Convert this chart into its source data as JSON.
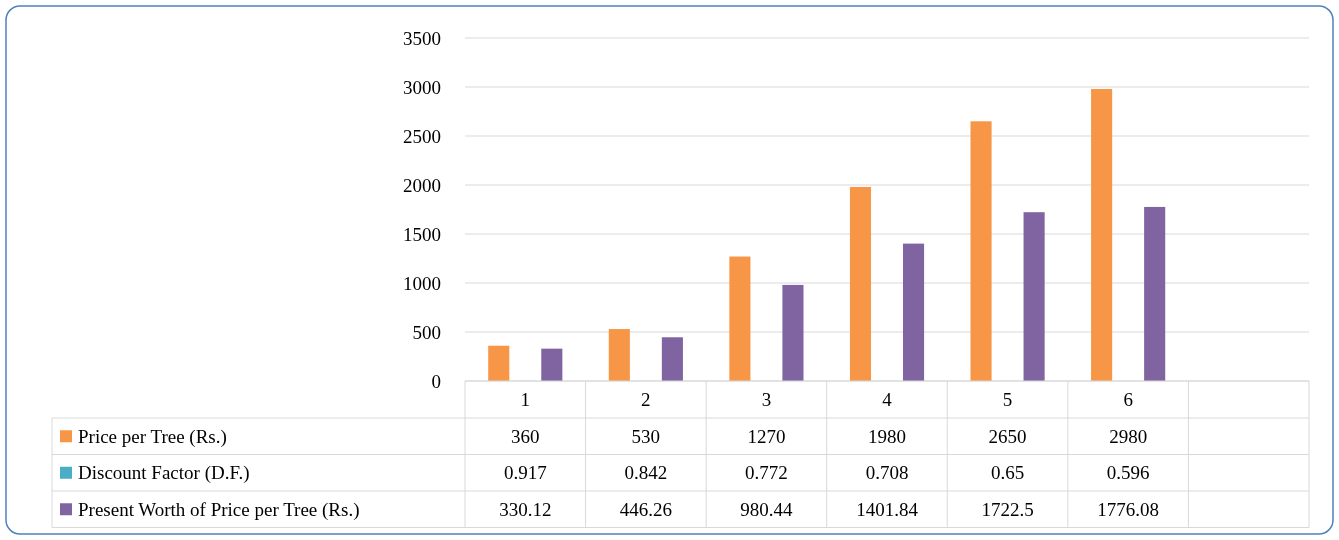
{
  "chart_data": {
    "type": "bar",
    "categories": [
      "1",
      "2",
      "3",
      "4",
      "5",
      "6",
      null
    ],
    "series": [
      {
        "name": "Price per Tree (Rs.)",
        "color": "#f79646",
        "values": [
          360,
          530,
          1270,
          1980,
          2650,
          2980,
          null
        ]
      },
      {
        "name": "Discount Factor (D.F.)",
        "color": "#4bacc6",
        "values": [
          0.917,
          0.842,
          0.772,
          0.708,
          0.65,
          0.596,
          null
        ]
      },
      {
        "name": "Present Worth of Price per Tree (Rs.)",
        "color": "#8064a2",
        "values": [
          330.12,
          446.26,
          980.44,
          1401.84,
          1722.5,
          1776.08,
          null
        ]
      }
    ],
    "ylim": [
      0,
      3500
    ],
    "yticks": [
      0,
      500,
      1000,
      1500,
      2000,
      2500,
      3000,
      3500
    ],
    "grid": "y",
    "legend": "bottom",
    "data_labels": true
  }
}
